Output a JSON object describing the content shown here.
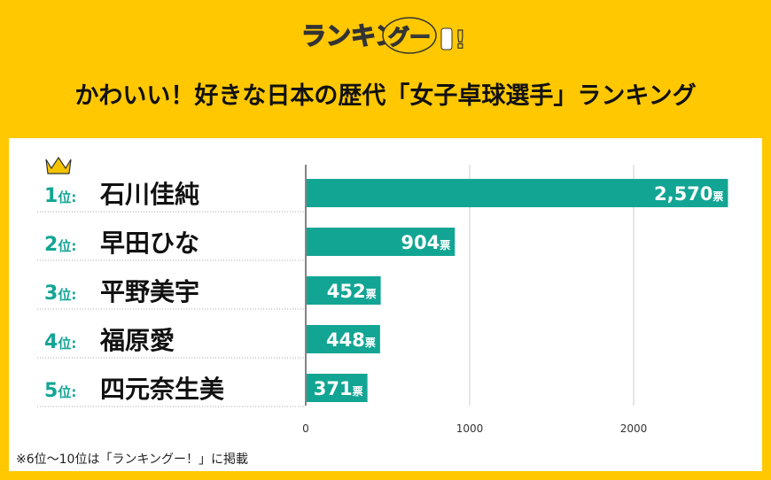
{
  "logo_text": "ランキングー!",
  "title": "かわいい！好きな日本の歴代「女子卓球選手」ランキング",
  "note": "※6位～10位は「ランキングー！」に掲載",
  "colors": {
    "background": "#FFC800",
    "bar": "#12A594",
    "rank": "#12A594",
    "crown": "#F5C400"
  },
  "chart_data": {
    "type": "bar",
    "orientation": "horizontal",
    "unit": "票",
    "rank_suffix": "位",
    "categories": [
      "石川佳純",
      "早田ひな",
      "平野美宇",
      "福原愛",
      "四元奈生美"
    ],
    "ranks": [
      "1",
      "2",
      "3",
      "4",
      "5"
    ],
    "values": [
      2570,
      904,
      452,
      448,
      371
    ],
    "value_labels": [
      "2,570",
      "904",
      "452",
      "448",
      "371"
    ],
    "xlim": [
      0,
      2570
    ],
    "xticks": [
      0,
      1000,
      2000
    ],
    "grid": true
  }
}
